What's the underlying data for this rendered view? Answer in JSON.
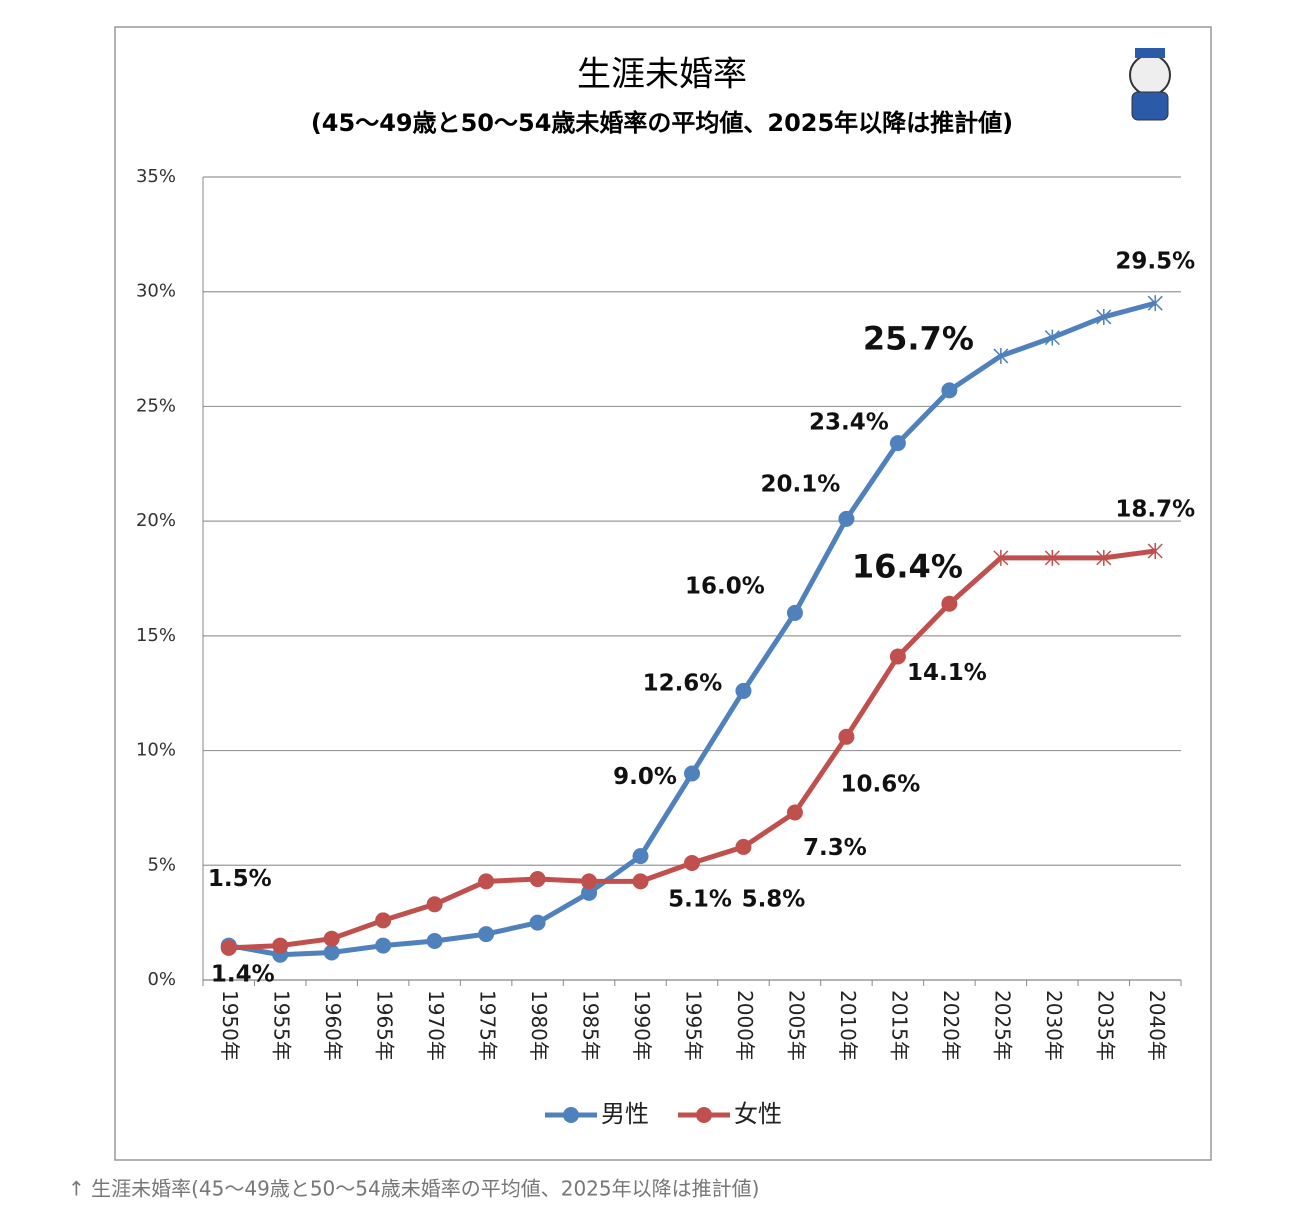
{
  "chart_data": {
    "type": "line",
    "title": "生涯未婚率",
    "subtitle": "(45〜49歳と50〜54歳未婚率の平均値、2025年以降は推計値)",
    "categories": [
      "1950年",
      "1955年",
      "1960年",
      "1965年",
      "1970年",
      "1975年",
      "1980年",
      "1985年",
      "1990年",
      "1995年",
      "2000年",
      "2005年",
      "2010年",
      "2015年",
      "2020年",
      "2025年",
      "2030年",
      "2035年",
      "2040年"
    ],
    "series": [
      {
        "name": "男性",
        "color": "#4f81bd",
        "values": [
          1.5,
          1.1,
          1.2,
          1.5,
          1.7,
          2.0,
          2.5,
          3.8,
          5.4,
          9.0,
          12.6,
          16.0,
          20.1,
          23.4,
          25.7,
          27.2,
          28.0,
          28.9,
          29.5
        ],
        "value_labels": [
          "1.5%",
          null,
          null,
          null,
          null,
          null,
          null,
          null,
          null,
          "9.0%",
          "12.6%",
          "16.0%",
          "20.1%",
          "23.4%",
          "25.7%",
          null,
          null,
          null,
          "29.5%"
        ],
        "markers": [
          "circle",
          "circle",
          "circle",
          "circle",
          "circle",
          "circle",
          "circle",
          "circle",
          "circle",
          "circle",
          "circle",
          "circle",
          "circle",
          "circle",
          "circle",
          "cross",
          "cross",
          "cross",
          "cross"
        ]
      },
      {
        "name": "女性",
        "color": "#c0504d",
        "values": [
          1.4,
          1.5,
          1.8,
          2.6,
          3.3,
          4.3,
          4.4,
          4.3,
          4.3,
          5.1,
          5.8,
          7.3,
          10.6,
          14.1,
          16.4,
          18.4,
          18.4,
          18.4,
          18.7
        ],
        "value_labels": [
          "1.4%",
          null,
          null,
          null,
          null,
          null,
          null,
          null,
          null,
          "5.1%",
          "5.8%",
          "7.3%",
          "10.6%",
          "14.1%",
          "16.4%",
          null,
          null,
          null,
          "18.7%"
        ],
        "markers": [
          "circle",
          "circle",
          "circle",
          "circle",
          "circle",
          "circle",
          "circle",
          "circle",
          "circle",
          "circle",
          "circle",
          "circle",
          "circle",
          "circle",
          "circle",
          "cross",
          "cross",
          "cross",
          "cross"
        ]
      }
    ],
    "ylim": [
      0,
      35
    ],
    "yticks": [
      {
        "value": 0,
        "label": "0%"
      },
      {
        "value": 5,
        "label": "5%"
      },
      {
        "value": 10,
        "label": "10%"
      },
      {
        "value": 15,
        "label": "15%"
      },
      {
        "value": 20,
        "label": "20%"
      },
      {
        "value": 25,
        "label": "25%"
      },
      {
        "value": 30,
        "label": "30%"
      },
      {
        "value": 35,
        "label": "35%"
      }
    ],
    "grid": true,
    "legend": "bottom"
  },
  "caption": "↑ 生涯未婚率(45〜49歳と50〜54歳未婚率の平均値、2025年以降は推計値)"
}
